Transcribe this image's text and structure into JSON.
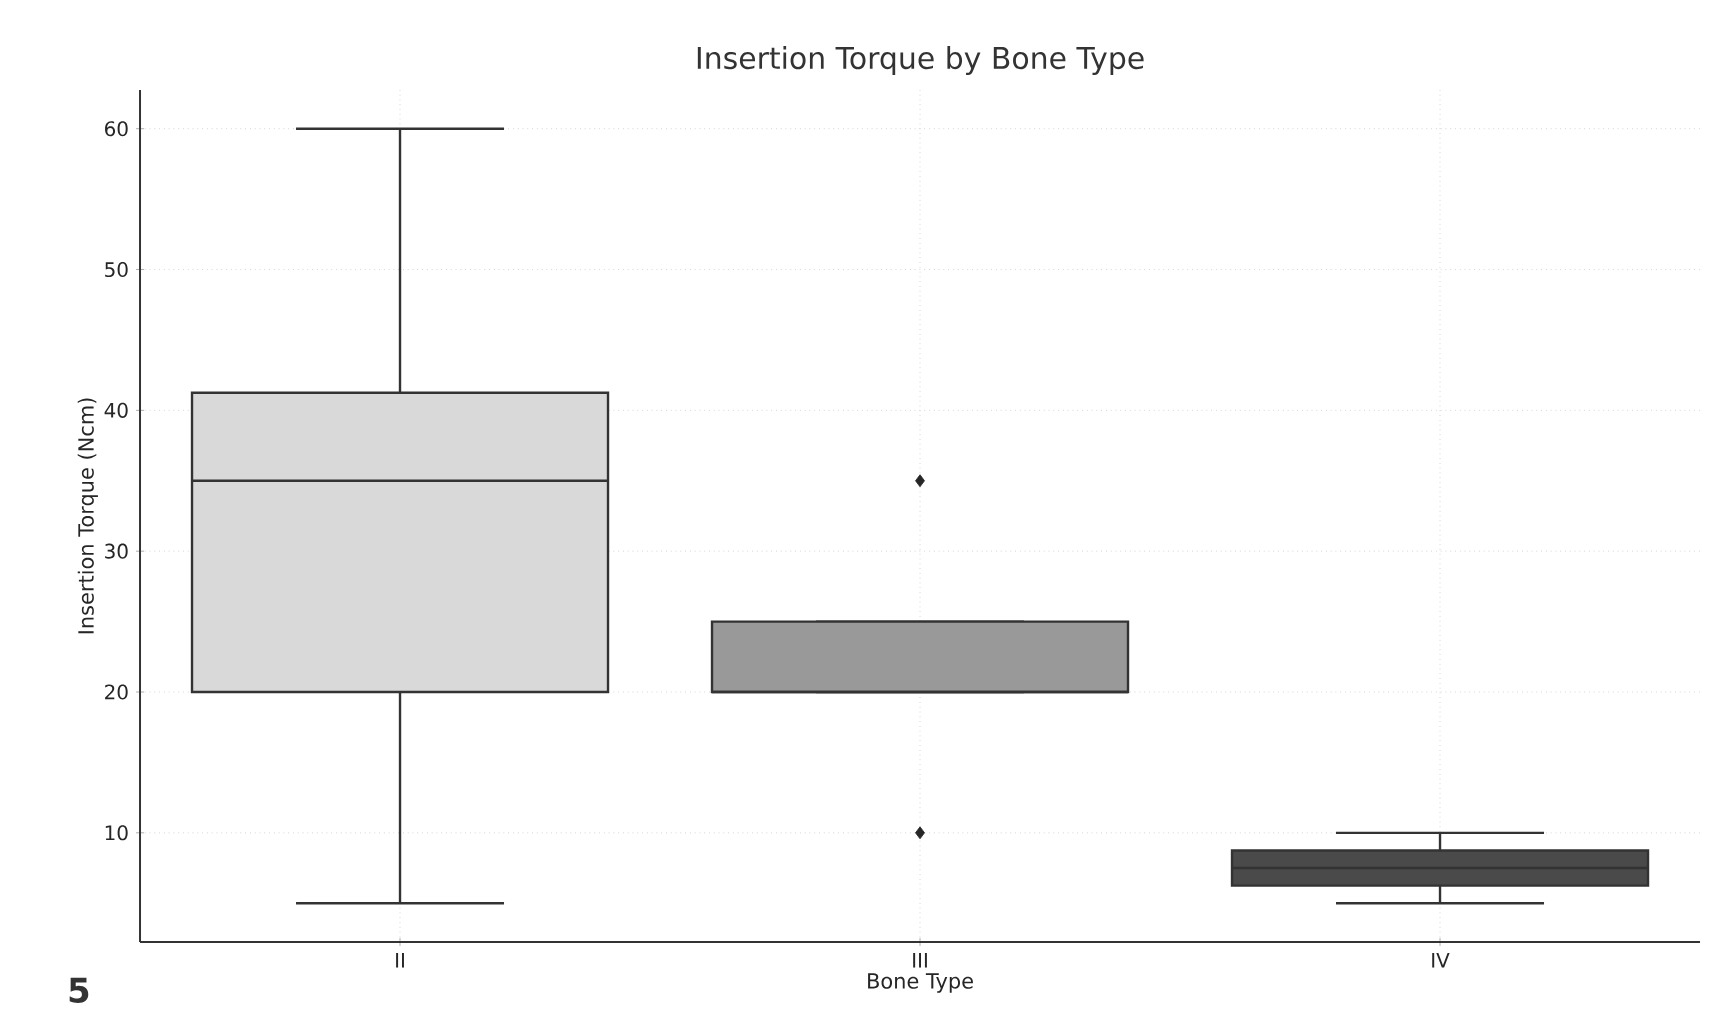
{
  "chart_data": {
    "type": "box",
    "title": "Insertion Torque by Bone Type",
    "xlabel": "Bone Type",
    "ylabel": "Insertion Torque (Ncm)",
    "categories": [
      "II",
      "III",
      "IV"
    ],
    "boxes": [
      {
        "low": 5,
        "q1": 20,
        "median": 35,
        "q3": 41.25,
        "high": 60
      },
      {
        "low": 20,
        "q1": 20,
        "median": 20,
        "q3": 25,
        "high": 25,
        "outliers": [
          35,
          10
        ]
      },
      {
        "low": 5,
        "q1": 6.25,
        "median": 7.5,
        "q3": 8.75,
        "high": 10
      }
    ],
    "colors": [
      "#d9d9d9",
      "#999999",
      "#4a4a4a"
    ],
    "ylim": [
      2.25,
      62.75
    ],
    "yticks": [
      10,
      20,
      30,
      40,
      50,
      60
    ],
    "grid": true,
    "annotations": [
      "5"
    ]
  }
}
